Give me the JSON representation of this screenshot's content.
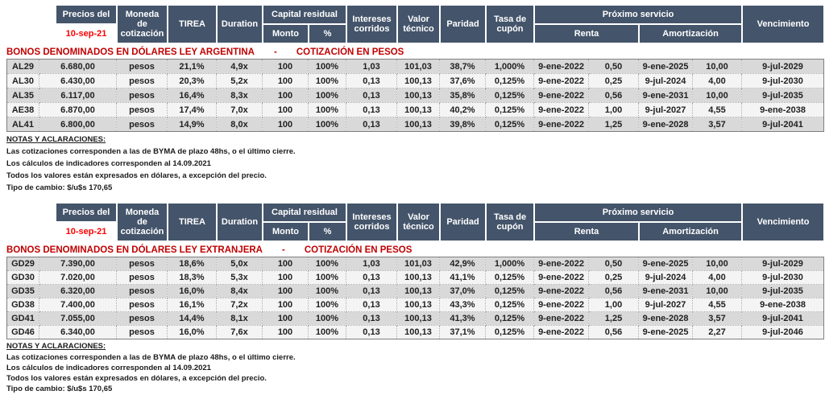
{
  "colors": {
    "header_bg": "#44546A",
    "header_text": "#ffffff",
    "date_red": "#ff0000",
    "title_red": "#c00000",
    "row_odd": "#d9d9d9",
    "row_even": "#f4f4f4",
    "body_text": "#212121"
  },
  "header": {
    "precios_label": "Precios del",
    "date": "10-sep-21",
    "moneda": "Moneda de cotización",
    "tirea": "TIREA",
    "duration": "Duration",
    "capital_residual": "Capital residual",
    "monto": "Monto",
    "pct": "%",
    "intereses": "Intereses corridos",
    "valor": "Valor técnico",
    "paridad": "Paridad",
    "tasa": "Tasa de cupón",
    "proximo": "Próximo servicio",
    "renta": "Renta",
    "amortizacion": "Amortización",
    "vencimiento": "Vencimiento"
  },
  "sections": [
    {
      "title_left": "BONOS DENOMINADOS EN DÓLARES LEY ARGENTINA",
      "title_sep": "-",
      "title_right": "COTIZACIÓN EN PESOS",
      "rows": [
        [
          "AL29",
          "6.680,00",
          "pesos",
          "21,1%",
          "4,9x",
          "100",
          "100%",
          "1,03",
          "101,03",
          "38,7%",
          "1,000%",
          "9-ene-2022",
          "0,50",
          "9-ene-2025",
          "10,00",
          "9-jul-2029"
        ],
        [
          "AL30",
          "6.430,00",
          "pesos",
          "20,3%",
          "5,2x",
          "100",
          "100%",
          "0,13",
          "100,13",
          "37,6%",
          "0,125%",
          "9-ene-2022",
          "0,25",
          "9-jul-2024",
          "4,00",
          "9-jul-2030"
        ],
        [
          "AL35",
          "6.117,00",
          "pesos",
          "16,4%",
          "8,3x",
          "100",
          "100%",
          "0,13",
          "100,13",
          "35,8%",
          "0,125%",
          "9-ene-2022",
          "0,56",
          "9-ene-2031",
          "10,00",
          "9-jul-2035"
        ],
        [
          "AE38",
          "6.870,00",
          "pesos",
          "17,4%",
          "7,0x",
          "100",
          "100%",
          "0,13",
          "100,13",
          "40,2%",
          "0,125%",
          "9-ene-2022",
          "1,00",
          "9-jul-2027",
          "4,55",
          "9-ene-2038"
        ],
        [
          "AL41",
          "6.800,00",
          "pesos",
          "14,9%",
          "8,0x",
          "100",
          "100%",
          "0,13",
          "100,13",
          "39,8%",
          "0,125%",
          "9-ene-2022",
          "1,25",
          "9-ene-2028",
          "3,57",
          "9-jul-2041"
        ]
      ]
    },
    {
      "title_left": "BONOS DENOMINADOS EN DÓLARES LEY EXTRANJERA",
      "title_sep": "-",
      "title_right": "COTIZACIÓN EN PESOS",
      "rows": [
        [
          "GD29",
          "7.390,00",
          "pesos",
          "18,6%",
          "5,0x",
          "100",
          "100%",
          "1,03",
          "101,03",
          "42,9%",
          "1,000%",
          "9-ene-2022",
          "0,50",
          "9-ene-2025",
          "10,00",
          "9-jul-2029"
        ],
        [
          "GD30",
          "7.020,00",
          "pesos",
          "18,3%",
          "5,3x",
          "100",
          "100%",
          "0,13",
          "100,13",
          "41,1%",
          "0,125%",
          "9-ene-2022",
          "0,25",
          "9-jul-2024",
          "4,00",
          "9-jul-2030"
        ],
        [
          "GD35",
          "6.320,00",
          "pesos",
          "16,0%",
          "8,4x",
          "100",
          "100%",
          "0,13",
          "100,13",
          "37,0%",
          "0,125%",
          "9-ene-2022",
          "0,56",
          "9-ene-2031",
          "10,00",
          "9-jul-2035"
        ],
        [
          "GD38",
          "7.400,00",
          "pesos",
          "16,1%",
          "7,2x",
          "100",
          "100%",
          "0,13",
          "100,13",
          "43,3%",
          "0,125%",
          "9-ene-2022",
          "1,00",
          "9-jul-2027",
          "4,55",
          "9-ene-2038"
        ],
        [
          "GD41",
          "7.055,00",
          "pesos",
          "14,4%",
          "8,1x",
          "100",
          "100%",
          "0,13",
          "100,13",
          "41,3%",
          "0,125%",
          "9-ene-2022",
          "1,25",
          "9-ene-2028",
          "3,57",
          "9-jul-2041"
        ],
        [
          "GD46",
          "6.340,00",
          "pesos",
          "16,0%",
          "7,6x",
          "100",
          "100%",
          "0,13",
          "100,13",
          "37,1%",
          "0,125%",
          "9-ene-2022",
          "0,56",
          "9-ene-2025",
          "2,27",
          "9-jul-2046"
        ]
      ]
    }
  ],
  "notes": {
    "heading": "NOTAS Y ACLARACIONES:",
    "lines": [
      "Las cotizaciones corresponden a las de BYMA de plazo 48hs, o el último cierre.",
      "Los cálculos de indicadores corresponden al 14.09.2021",
      "Todos los valores están expresados en dólares, a excepción del precio.",
      "Tipo de cambio: $/u$s 170,65"
    ]
  }
}
